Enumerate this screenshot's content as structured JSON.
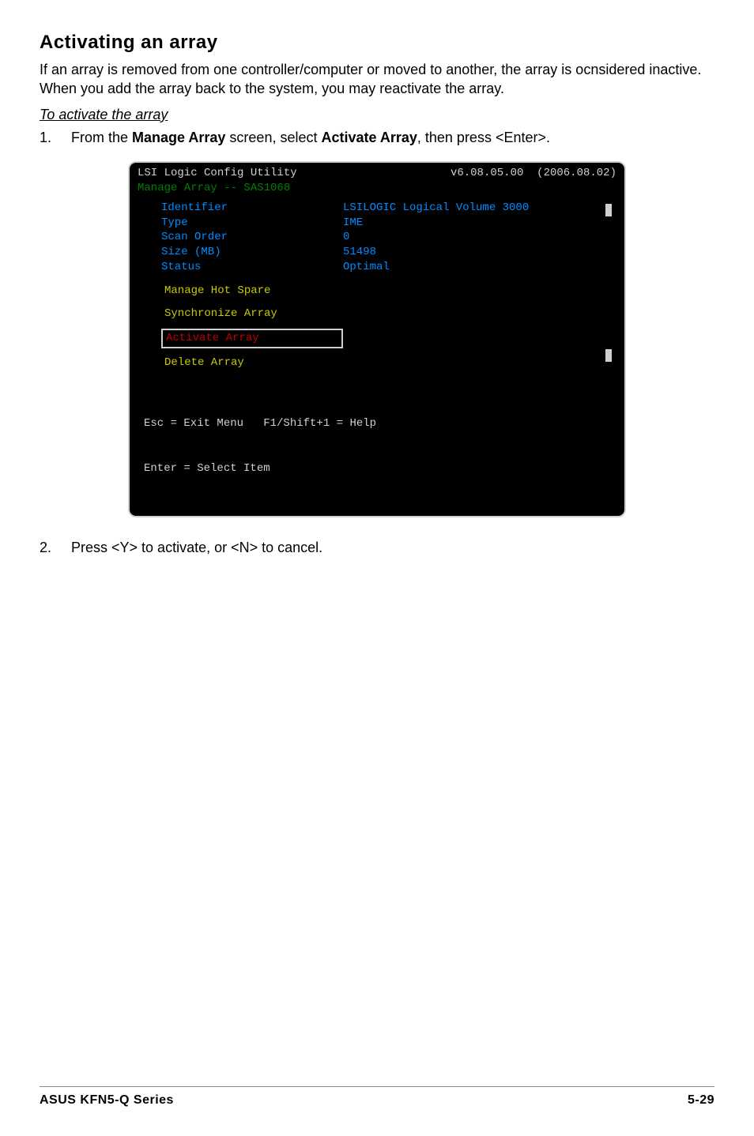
{
  "section": {
    "title": "Activating an array",
    "intro": "If an array is removed from one controller/computer or moved to another, the array is ocnsidered inactive. When you add the array back to the system, you may reactivate the array.",
    "subhead": "To activate the array",
    "step1_pre": "From the ",
    "step1_b1": "Manage Array",
    "step1_mid": " screen, select ",
    "step1_b2": "Activate Array",
    "step1_post": ", then press <Enter>.",
    "step2": "Press <Y> to activate, or <N> to cancel."
  },
  "term": {
    "title_left": "LSI Logic Config Utility",
    "title_right": "v6.08.05.00  (2006.08.02)",
    "subtitle": "Manage Array -- SAS1068",
    "rows": [
      {
        "k": "Identifier",
        "v": "LSILOGIC Logical Volume 3000"
      },
      {
        "k": "Type",
        "v": "IME"
      },
      {
        "k": "Scan Order",
        "v": "0"
      },
      {
        "k": "Size (MB)",
        "v": "51498"
      },
      {
        "k": "Status",
        "v": "Optimal"
      }
    ],
    "menu": [
      {
        "label": "Manage Hot Spare",
        "cls": "menu-yellow"
      },
      {
        "label": "Synchronize Array",
        "cls": "menu-yellow"
      },
      {
        "label": "Activate Array",
        "cls": "menu-red menu-selected"
      },
      {
        "label": "Delete Array",
        "cls": "menu-yellow"
      }
    ],
    "footer1": "Esc = Exit Menu   F1/Shift+1 = Help",
    "footer2": "Enter = Select Item"
  },
  "footer": {
    "left": "ASUS KFN5-Q Series",
    "right": "5-29"
  },
  "colors": {
    "term_bg": "#000000",
    "term_text_white": "#d0d0d0",
    "term_text_blue": "#008cff",
    "term_text_green": "#008000",
    "term_text_yellow": "#c9c900",
    "term_text_red": "#c00000"
  }
}
